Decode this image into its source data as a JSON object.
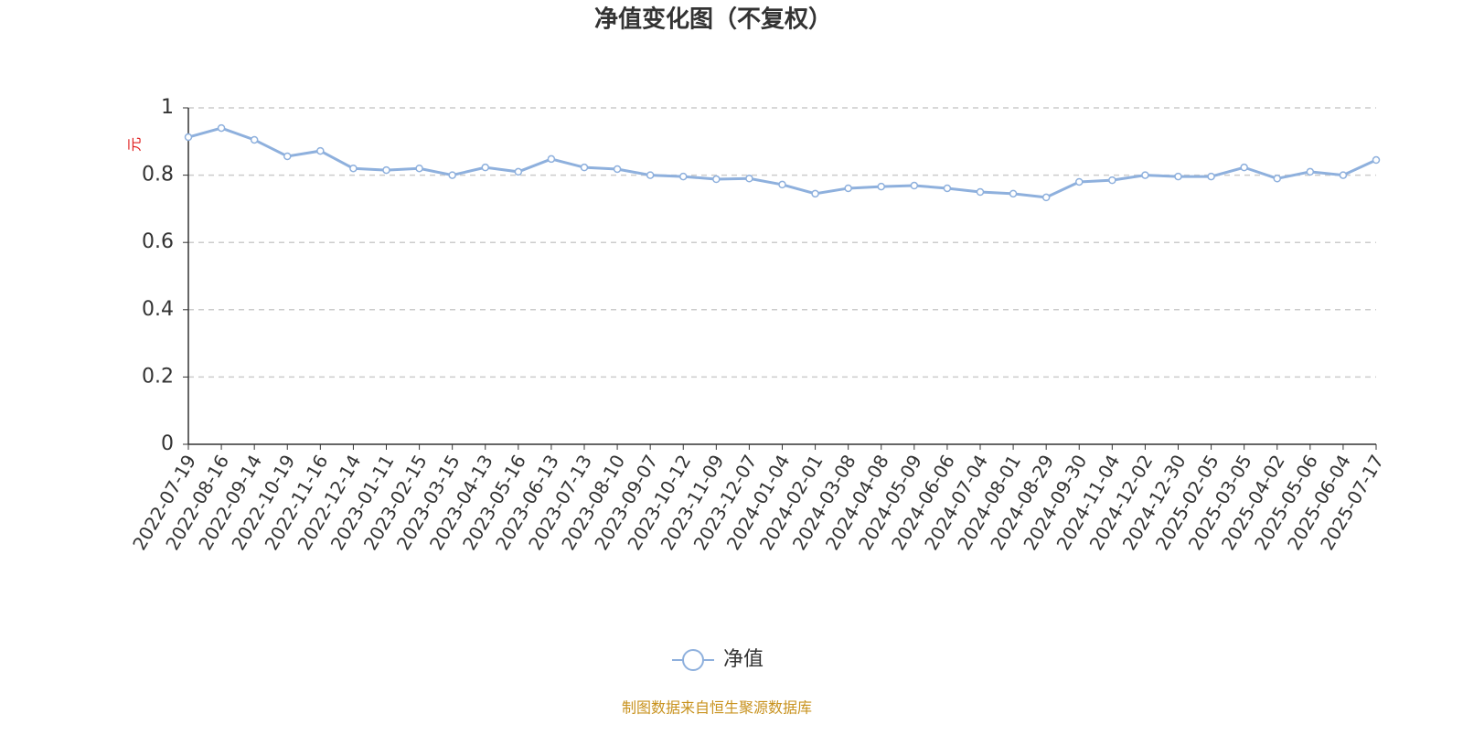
{
  "chart_data": {
    "type": "line",
    "title": "净值变化图（不复权）",
    "y_label": "元",
    "source": "制图数据来自恒生聚源数据库",
    "categories": [
      "2022-07-19",
      "2022-08-16",
      "2022-09-14",
      "2022-10-19",
      "2022-11-16",
      "2022-12-14",
      "2023-01-11",
      "2023-02-15",
      "2023-03-15",
      "2023-04-13",
      "2023-05-16",
      "2023-06-13",
      "2023-07-13",
      "2023-08-10",
      "2023-09-07",
      "2023-10-12",
      "2023-11-09",
      "2023-12-07",
      "2024-01-04",
      "2024-02-01",
      "2024-03-08",
      "2024-04-08",
      "2024-05-09",
      "2024-06-06",
      "2024-07-04",
      "2024-08-01",
      "2024-08-29",
      "2024-09-30",
      "2024-11-04",
      "2024-12-02",
      "2024-12-30",
      "2025-02-05",
      "2025-03-05",
      "2025-04-02",
      "2025-05-06",
      "2025-06-04",
      "2025-07-17"
    ],
    "series": [
      {
        "name": "净值",
        "color": "#8eb0dd",
        "values": [
          0.913,
          0.94,
          0.905,
          0.856,
          0.872,
          0.82,
          0.815,
          0.82,
          0.8,
          0.823,
          0.81,
          0.848,
          0.823,
          0.818,
          0.8,
          0.796,
          0.788,
          0.79,
          0.772,
          0.745,
          0.761,
          0.766,
          0.769,
          0.761,
          0.75,
          0.745,
          0.734,
          0.78,
          0.785,
          0.8,
          0.796,
          0.796,
          0.823,
          0.79,
          0.81,
          0.8,
          0.845
        ]
      }
    ],
    "ylim": [
      0,
      1
    ],
    "yticks": [
      0,
      0.2,
      0.4,
      0.6,
      0.8,
      1
    ],
    "grid": true,
    "legend": "bottom"
  }
}
